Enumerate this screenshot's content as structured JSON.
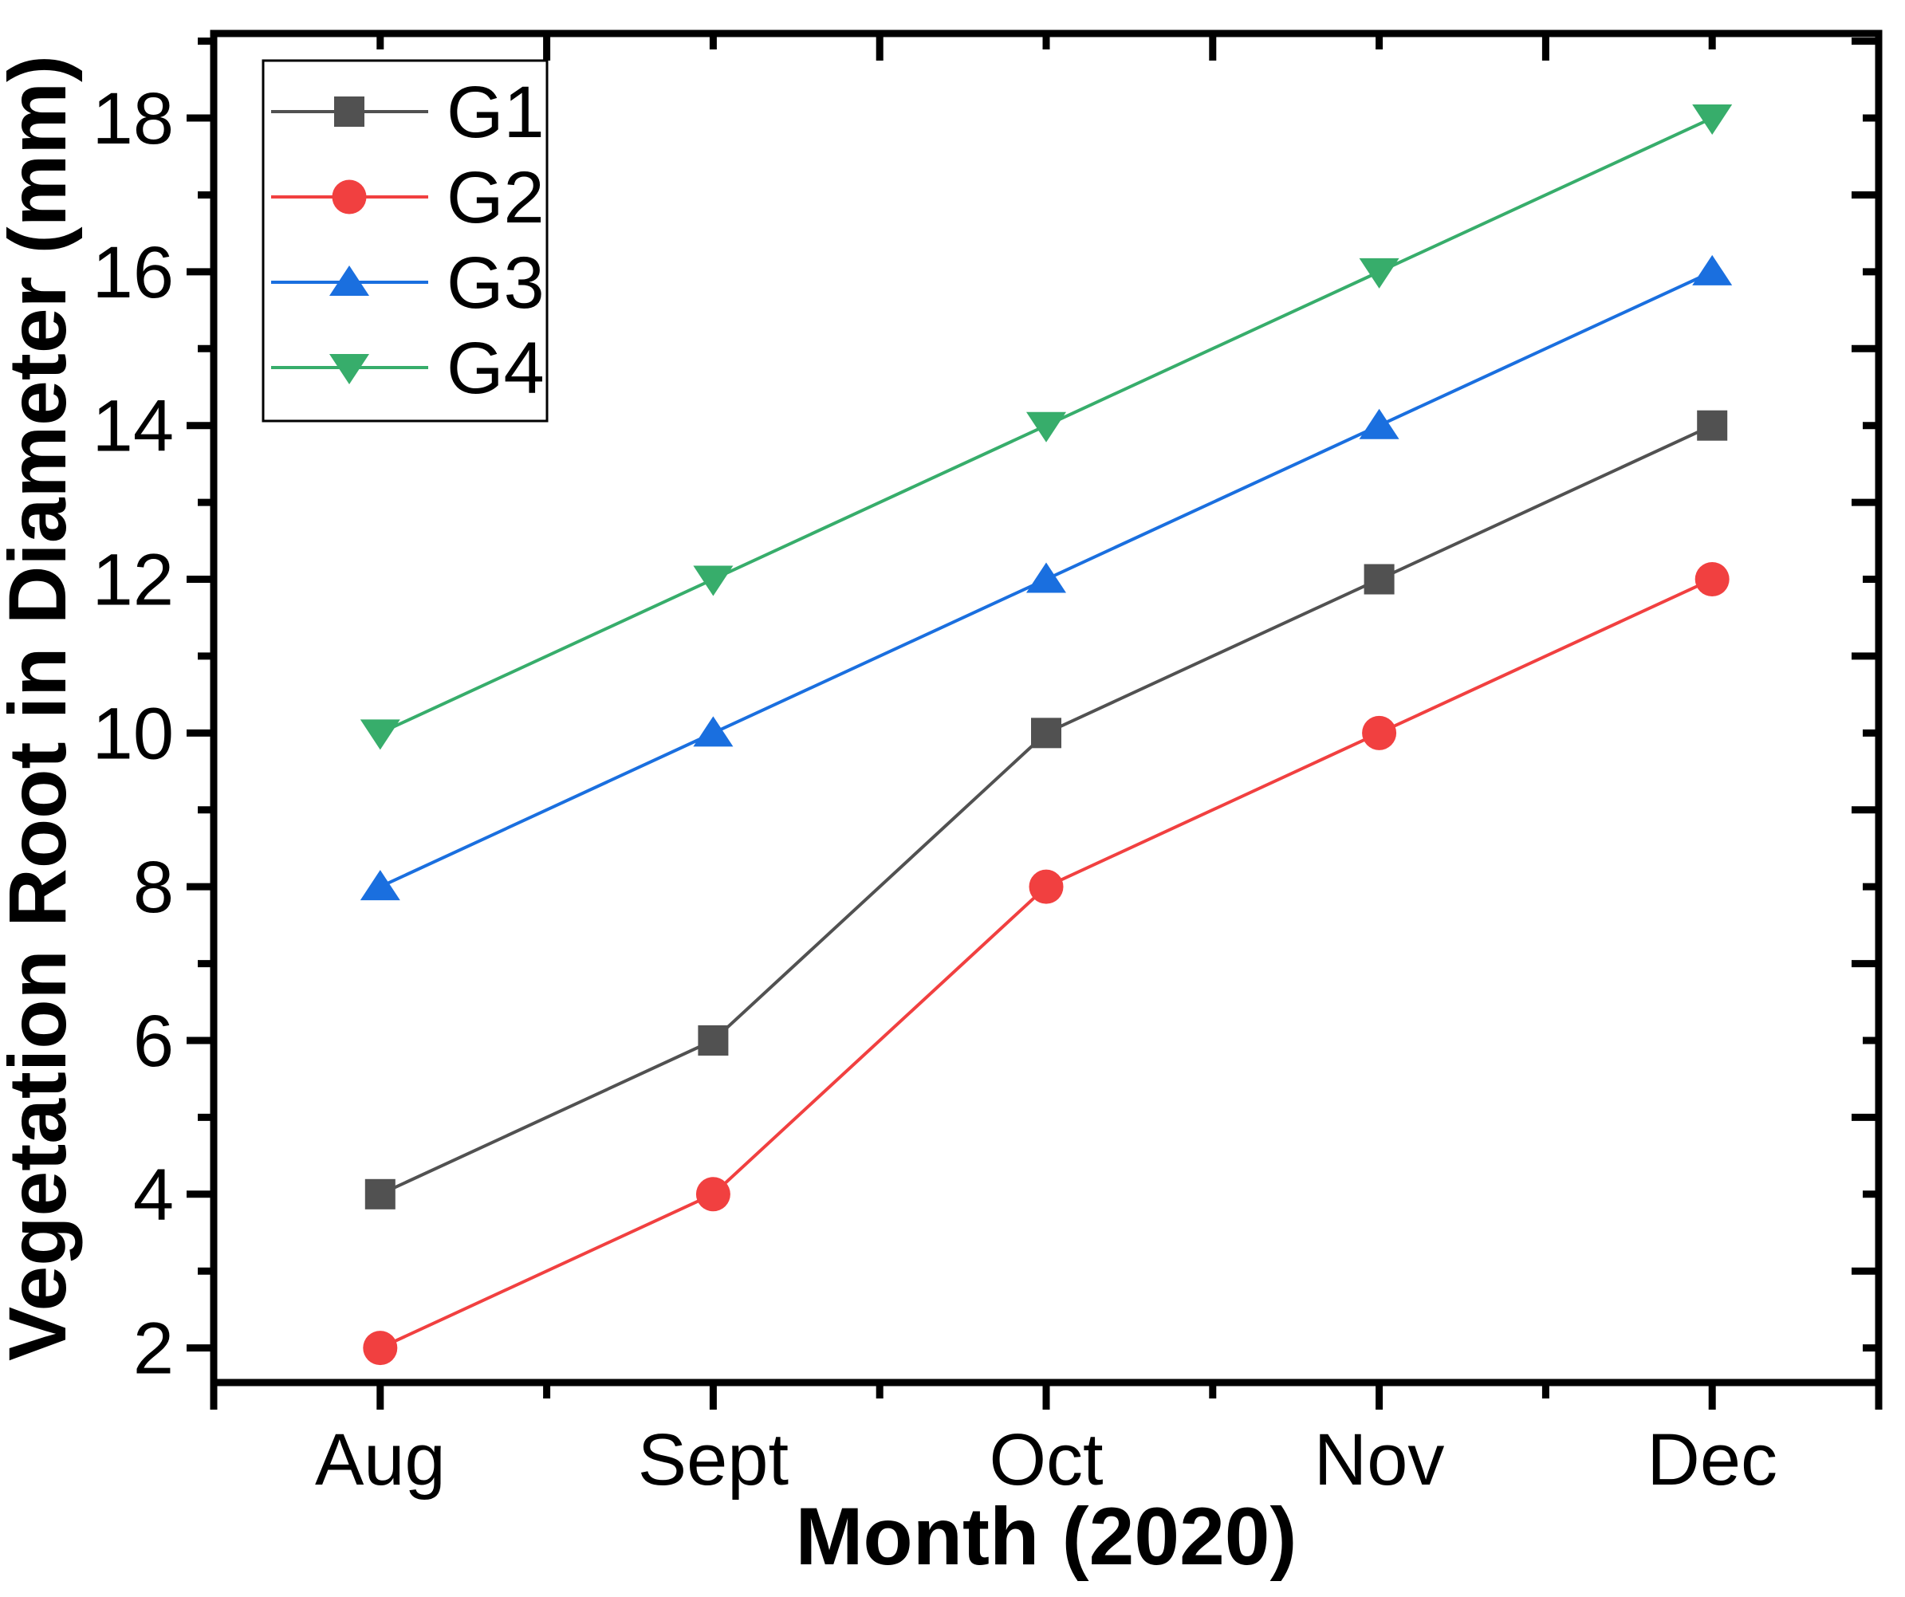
{
  "figure": {
    "background": "#ffffff",
    "axis_color": "#000000"
  },
  "chart_data": {
    "type": "line",
    "title": "",
    "xlabel": "Month (2020)",
    "ylabel": "Vegetation Root in Diameter (mm)",
    "categories": [
      "Aug",
      "Sept",
      "Oct",
      "Nov",
      "Dec"
    ],
    "series": [
      {
        "name": "G1",
        "marker": "square",
        "color": "#515151",
        "values": [
          4,
          6,
          10,
          12,
          14
        ]
      },
      {
        "name": "G2",
        "marker": "circle",
        "color": "#F14040",
        "values": [
          2,
          4,
          8,
          10,
          12
        ]
      },
      {
        "name": "G3",
        "marker": "triangle-up",
        "color": "#1A6FDF",
        "values": [
          8,
          10,
          12,
          14,
          16
        ]
      },
      {
        "name": "G4",
        "marker": "triangle-down",
        "color": "#37AD6B",
        "values": [
          10,
          12,
          14,
          16,
          18
        ]
      }
    ],
    "y_ticks": [
      2,
      4,
      6,
      8,
      10,
      12,
      14,
      16,
      18
    ],
    "y_minor_ticks": [
      3,
      5,
      7,
      9,
      11,
      13,
      15,
      17,
      19
    ],
    "ylim": [
      1.55,
      19.1
    ],
    "x_units_lim": [
      0.5,
      5.5
    ],
    "grid": false,
    "legend_position": "top-left",
    "legend_border_color": "#000000"
  }
}
